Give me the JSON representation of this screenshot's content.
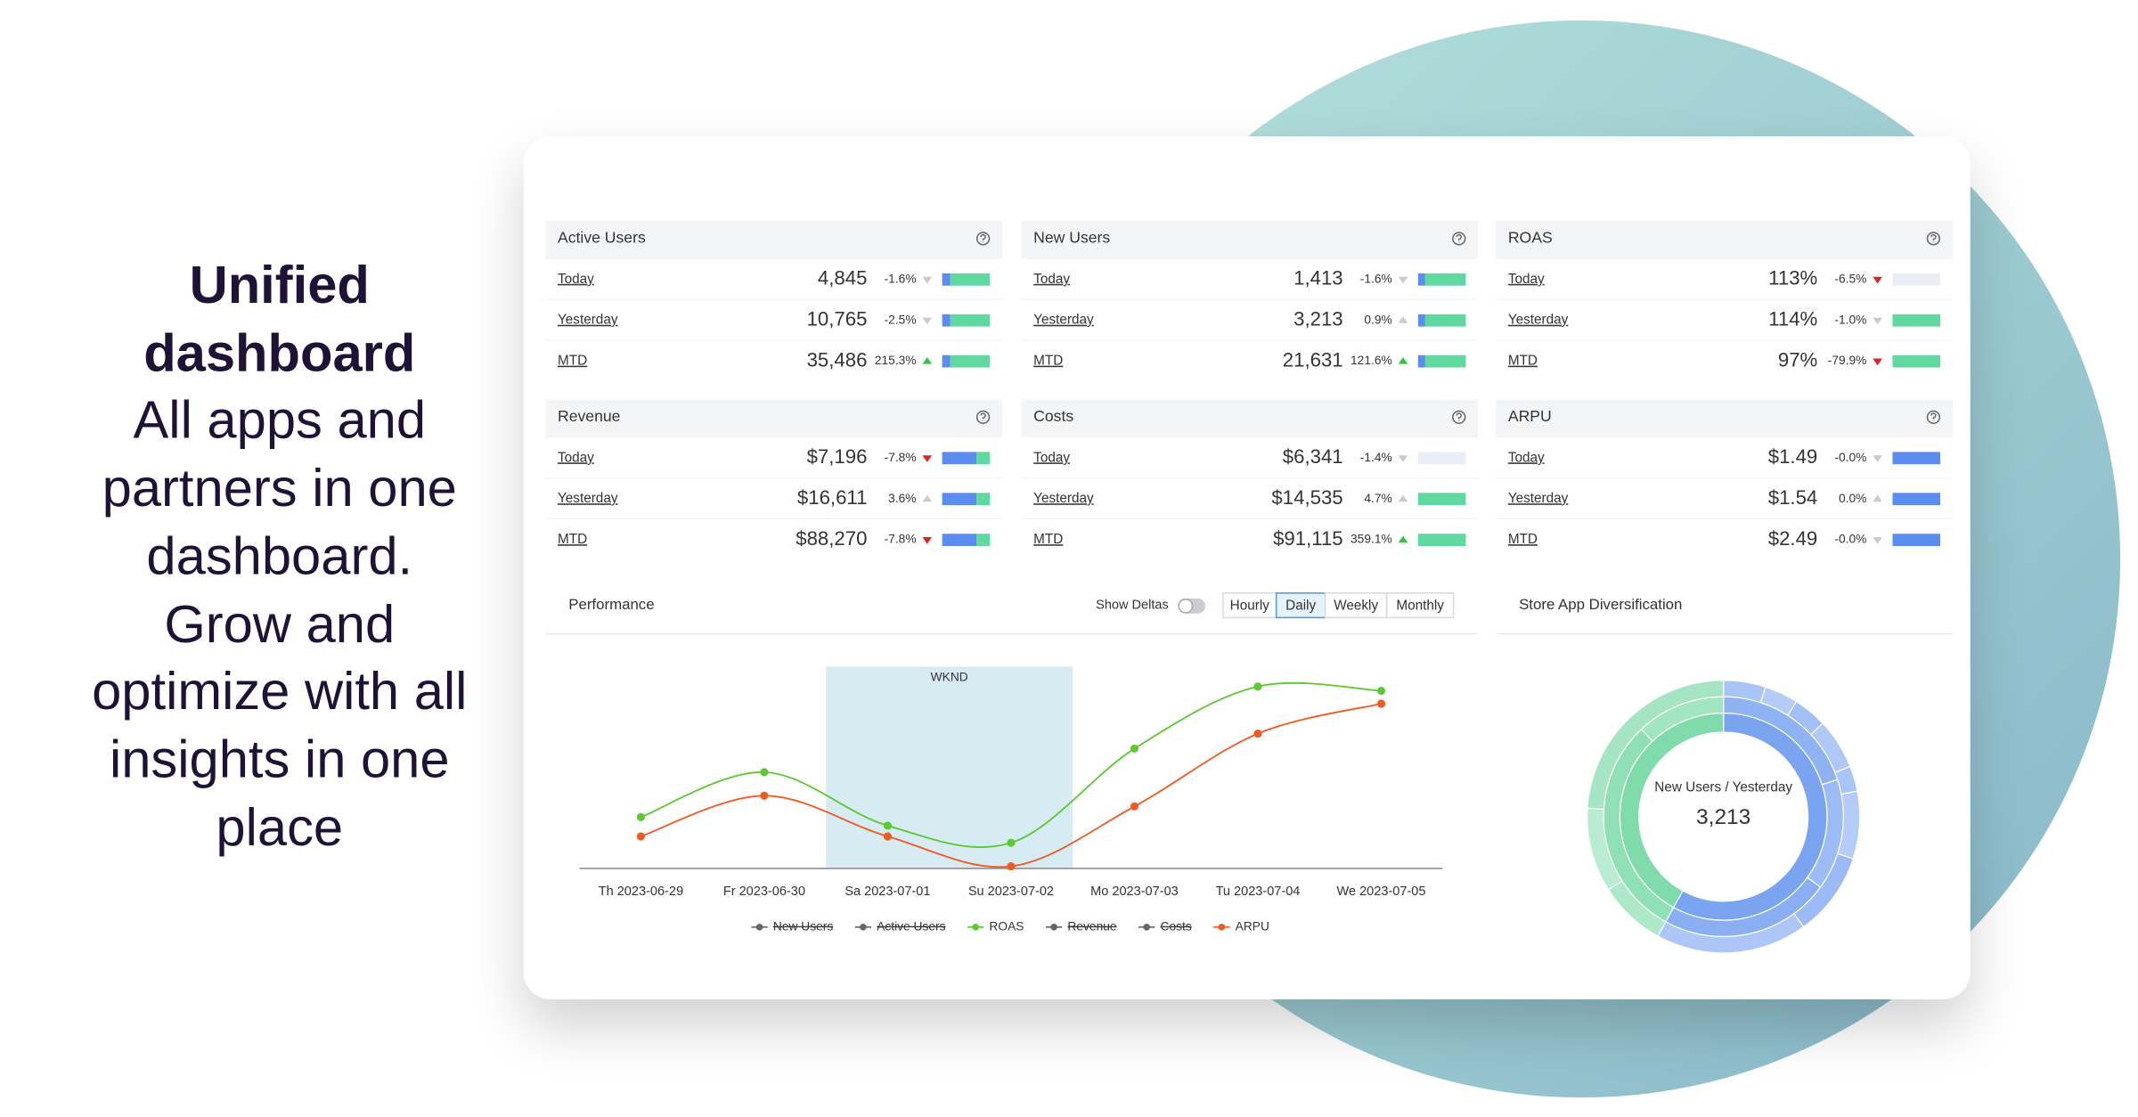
{
  "heading": "Unified dashboard",
  "description": [
    "All apps and partners in one dashboard.",
    "Grow and optimize with all insights in one place"
  ],
  "cards": [
    {
      "title": "Active Users",
      "rows": [
        {
          "label": "Today",
          "value": "4,845",
          "delta": "-1.6%",
          "arrow": "down",
          "arrow_color": "#c8ccd2",
          "bar": [
            17,
            83
          ]
        },
        {
          "label": "Yesterday",
          "value": "10,765",
          "delta": "-2.5%",
          "arrow": "down",
          "arrow_color": "#c8ccd2",
          "bar": [
            17,
            83
          ]
        },
        {
          "label": "MTD",
          "value": "35,486",
          "delta": "215.3%",
          "arrow": "up",
          "arrow_color": "#3cbf4a",
          "bar": [
            17,
            83
          ]
        }
      ]
    },
    {
      "title": "New Users",
      "rows": [
        {
          "label": "Today",
          "value": "1,413",
          "delta": "-1.6%",
          "arrow": "down",
          "arrow_color": "#c8ccd2",
          "bar": [
            15,
            85
          ]
        },
        {
          "label": "Yesterday",
          "value": "3,213",
          "delta": "0.9%",
          "arrow": "up",
          "arrow_color": "#c8ccd2",
          "bar": [
            15,
            85
          ]
        },
        {
          "label": "MTD",
          "value": "21,631",
          "delta": "121.6%",
          "arrow": "up",
          "arrow_color": "#3cbf4a",
          "bar": [
            15,
            85
          ]
        }
      ]
    },
    {
      "title": "ROAS",
      "rows": [
        {
          "label": "Today",
          "value": "113%",
          "delta": "-6.5%",
          "arrow": "down",
          "arrow_color": "#e02424",
          "bar": [
            0,
            0
          ]
        },
        {
          "label": "Yesterday",
          "value": "114%",
          "delta": "-1.0%",
          "arrow": "down",
          "arrow_color": "#c8ccd2",
          "bar": [
            0,
            100
          ]
        },
        {
          "label": "MTD",
          "value": "97%",
          "delta": "-79.9%",
          "arrow": "down",
          "arrow_color": "#e02424",
          "bar": [
            0,
            100
          ]
        }
      ]
    },
    {
      "title": "Revenue",
      "rows": [
        {
          "label": "Today",
          "value": "$7,196",
          "delta": "-7.8%",
          "arrow": "down",
          "arrow_color": "#e02424",
          "bar": [
            72,
            28
          ]
        },
        {
          "label": "Yesterday",
          "value": "$16,611",
          "delta": "3.6%",
          "arrow": "up",
          "arrow_color": "#c8ccd2",
          "bar": [
            72,
            28
          ]
        },
        {
          "label": "MTD",
          "value": "$88,270",
          "delta": "-7.8%",
          "arrow": "down",
          "arrow_color": "#e02424",
          "bar": [
            72,
            28
          ]
        }
      ]
    },
    {
      "title": "Costs",
      "rows": [
        {
          "label": "Today",
          "value": "$6,341",
          "delta": "-1.4%",
          "arrow": "down",
          "arrow_color": "#c8ccd2",
          "bar": [
            0,
            0
          ]
        },
        {
          "label": "Yesterday",
          "value": "$14,535",
          "delta": "4.7%",
          "arrow": "up",
          "arrow_color": "#c8ccd2",
          "bar": [
            0,
            100
          ]
        },
        {
          "label": "MTD",
          "value": "$91,115",
          "delta": "359.1%",
          "arrow": "up",
          "arrow_color": "#3cbf4a",
          "bar": [
            0,
            100
          ]
        }
      ]
    },
    {
      "title": "ARPU",
      "rows": [
        {
          "label": "Today",
          "value": "$1.49",
          "delta": "-0.0%",
          "arrow": "down",
          "arrow_color": "#c8ccd2",
          "bar": [
            100,
            0
          ]
        },
        {
          "label": "Yesterday",
          "value": "$1.54",
          "delta": "0.0%",
          "arrow": "up",
          "arrow_color": "#c8ccd2",
          "bar": [
            100,
            0
          ]
        },
        {
          "label": "MTD",
          "value": "$2.49",
          "delta": "-0.0%",
          "arrow": "down",
          "arrow_color": "#c8ccd2",
          "bar": [
            100,
            0
          ]
        }
      ]
    }
  ],
  "chart_data": [
    {
      "type": "line",
      "title": "Performance",
      "toggle_label": "Show Deltas",
      "options": [
        "Hourly",
        "Daily",
        "Weekly",
        "Monthly"
      ],
      "selected": "Daily",
      "categories": [
        "Th 2023-06-29",
        "Fr 2023-06-30",
        "Sa 2023-07-01",
        "Su 2023-07-02",
        "Mo 2023-07-03",
        "Tu 2023-07-04",
        "We 2023-07-05"
      ],
      "band": {
        "label": "WKND",
        "from": 2,
        "to": 3
      },
      "ylim": [
        0,
        100
      ],
      "series": [
        {
          "name": "New Users",
          "color": "#666666",
          "visible": false,
          "values": [
            null,
            null,
            null,
            null,
            null,
            null,
            null
          ]
        },
        {
          "name": "Active Users",
          "color": "#666666",
          "visible": false,
          "values": [
            null,
            null,
            null,
            null,
            null,
            null,
            null
          ]
        },
        {
          "name": "ROAS",
          "color": "#5cc832",
          "visible": true,
          "values": [
            24,
            45,
            20,
            12,
            56,
            85,
            83
          ]
        },
        {
          "name": "Revenue",
          "color": "#666666",
          "visible": false,
          "values": [
            null,
            null,
            null,
            null,
            null,
            null,
            null
          ]
        },
        {
          "name": "Costs",
          "color": "#666666",
          "visible": false,
          "values": [
            null,
            null,
            null,
            null,
            null,
            null,
            null
          ]
        },
        {
          "name": "ARPU",
          "color": "#f05a23",
          "visible": true,
          "values": [
            15,
            34,
            15,
            1,
            29,
            63,
            77
          ]
        }
      ]
    },
    {
      "type": "sunburst",
      "title": "Store App Diversification",
      "center_label": "New Users / Yesterday",
      "center_value": "3,213",
      "rings": [
        {
          "values": [
            58,
            42
          ],
          "colors": [
            "#7aa3f0",
            "#7fdcaa"
          ]
        },
        {
          "values": [
            20,
            15,
            23,
            30,
            12
          ],
          "colors": [
            "#8fb2f3",
            "#9dbcf5",
            "#8aaef2",
            "#90e0b6",
            "#a2e6c1"
          ]
        },
        {
          "values": [
            5,
            4,
            4,
            6,
            3,
            8,
            10,
            18,
            8,
            10,
            24
          ],
          "colors": [
            "#a9c4f7",
            "#b6ccf8",
            "#a2bff6",
            "#b0c8f8",
            "#a9c4f7",
            "#b6ccf8",
            "#9cbaf5",
            "#aec6f7",
            "#ade8c8",
            "#b9ecd0",
            "#a6e5c3"
          ]
        }
      ]
    }
  ]
}
